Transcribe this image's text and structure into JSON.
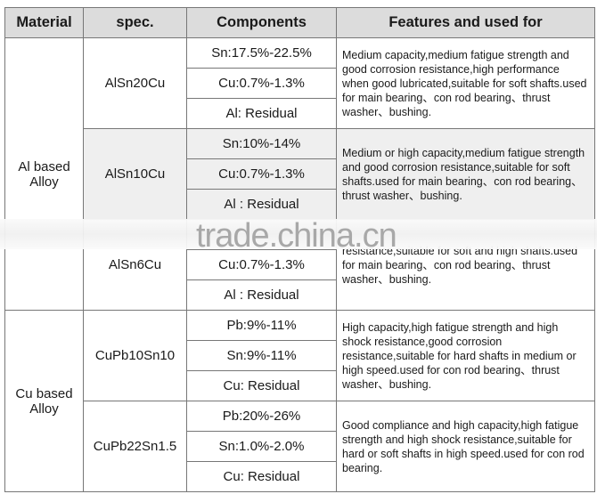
{
  "headers": [
    "Material",
    "spec.",
    "Components",
    "Features and used for"
  ],
  "groups": [
    {
      "material": "Al based Alloy",
      "specs": [
        {
          "spec": "AlSn20Cu",
          "components": [
            "Sn:17.5%-22.5%",
            "Cu:0.7%-1.3%",
            "Al: Residual"
          ],
          "features": "Medium capacity,medium fatigue strength and good corrosion resistance,high performance when good lubricated,suitable for soft shafts.used for main bearing、con rod bearing、thrust washer、bushing."
        },
        {
          "spec": "AlSn10Cu",
          "components": [
            "Sn:10%-14%",
            "Cu:0.7%-1.3%",
            "Al : Residual"
          ],
          "features": "Medium or high capacity,medium fatigue strength and good corrosion resistance,suitable for soft shafts.used for main bearing、con rod bearing、thrust washer、bushing."
        },
        {
          "spec": "AlSn6Cu",
          "components": [
            "",
            "Cu:0.7%-1.3%",
            "Al : Residual"
          ],
          "features": "resistance,suitable for soft and high shafts.used for main bearing、con rod bearing、thrust washer、bushing."
        }
      ]
    },
    {
      "material": "Cu based Alloy",
      "specs": [
        {
          "spec": "CuPb10Sn10",
          "components": [
            "Pb:9%-11%",
            "Sn:9%-11%",
            "Cu: Residual"
          ],
          "features": "High capacity,high fatigue strength and high shock resistance,good corrosion resistance,suitable for hard shafts in medium or high speed.used for con rod bearing、thrust washer、bushing."
        },
        {
          "spec": "CuPb22Sn1.5",
          "components": [
            "Pb:20%-26%",
            "Sn:1.0%-2.0%",
            "Cu: Residual"
          ],
          "features": "Good compliance and high capacity,high fatigue strength and high shock resistance,suitable for hard or soft shafts in high speed.used for con rod bearing."
        }
      ]
    }
  ],
  "watermark": "trade.china.cn"
}
